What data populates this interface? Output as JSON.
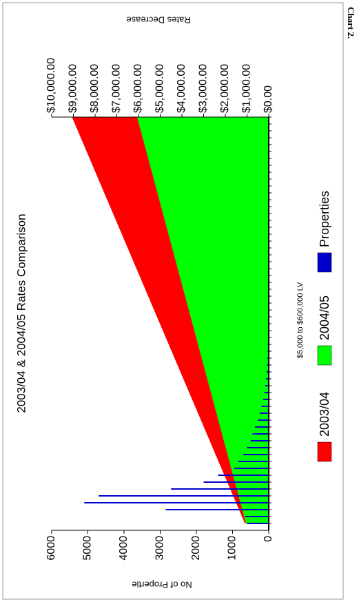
{
  "label": "Chart 2.",
  "chart_data": {
    "type": "combo",
    "title": "2003/04 & 2004/05 Rates Comparison",
    "x_label": "$5,000 to $600,000 LV",
    "y_label": "No of Propertie",
    "y2_label": "Rates Decrease",
    "x": [
      10000,
      20000,
      30000,
      40000,
      50000,
      60000,
      70000,
      80000,
      90000,
      100000,
      110000,
      120000,
      130000,
      140000,
      150000,
      160000,
      170000,
      180000,
      190000,
      200000,
      210000,
      220000,
      230000,
      240000,
      250000,
      260000,
      270000,
      280000,
      290000,
      300000,
      310000,
      320000,
      330000,
      340000,
      350000,
      360000,
      370000,
      380000,
      390000,
      400000,
      410000,
      420000,
      430000,
      440000,
      450000,
      460000,
      470000,
      480000,
      490000,
      500000,
      510000,
      520000,
      530000,
      540000,
      550000,
      560000,
      570000,
      580000,
      590000,
      600000
    ],
    "xlim": [
      0,
      600000
    ],
    "ylim": [
      0,
      6000
    ],
    "yticks": [
      0,
      1000,
      2000,
      3000,
      4000,
      5000,
      6000
    ],
    "y2lim": [
      0,
      10000
    ],
    "y2ticks": [
      {
        "value": 0,
        "label": "$0.00"
      },
      {
        "value": 1000,
        "label": "$1,000.00"
      },
      {
        "value": 2000,
        "label": "$2,000.00"
      },
      {
        "value": 3000,
        "label": "$3,000.00"
      },
      {
        "value": 4000,
        "label": "$4,000.00"
      },
      {
        "value": 5000,
        "label": "$5,000.00"
      },
      {
        "value": 6000,
        "label": "$6,000.00"
      },
      {
        "value": 7000,
        "label": "$7,000.00"
      },
      {
        "value": 8000,
        "label": "$8,000.00"
      },
      {
        "value": 9000,
        "label": "$9,000.00"
      },
      {
        "value": 10000,
        "label": "$10,000.00"
      }
    ],
    "legend": "bottom",
    "series": [
      {
        "name": "2003/04",
        "type": "area",
        "axis": "y2",
        "color": "#ff0000",
        "values": [
          1100,
          1235,
          1370,
          1505,
          1640,
          1775,
          1910,
          2045,
          2180,
          2315,
          2450,
          2585,
          2720,
          2855,
          2990,
          3125,
          3260,
          3395,
          3530,
          3665,
          3800,
          3935,
          4070,
          4205,
          4340,
          4475,
          4610,
          4745,
          4880,
          5015,
          5150,
          5285,
          5420,
          5555,
          5690,
          5825,
          5960,
          6095,
          6230,
          6365,
          6500,
          6635,
          6770,
          6905,
          7040,
          7175,
          7310,
          7445,
          7580,
          7715,
          7850,
          7985,
          8120,
          8255,
          8390,
          8525,
          8660,
          8795,
          8930,
          9065
        ]
      },
      {
        "name": "2004/05",
        "type": "area",
        "axis": "y2",
        "color": "#00ff00",
        "values": [
          1050,
          1135,
          1220,
          1305,
          1390,
          1475,
          1560,
          1645,
          1730,
          1815,
          1900,
          1985,
          2070,
          2155,
          2240,
          2325,
          2410,
          2495,
          2580,
          2665,
          2750,
          2835,
          2920,
          3005,
          3090,
          3175,
          3260,
          3345,
          3430,
          3515,
          3600,
          3685,
          3770,
          3855,
          3940,
          4025,
          4110,
          4195,
          4280,
          4365,
          4450,
          4535,
          4620,
          4705,
          4790,
          4875,
          4960,
          5045,
          5130,
          5215,
          5300,
          5385,
          5470,
          5555,
          5640,
          5725,
          5810,
          5895,
          5980,
          6065
        ]
      },
      {
        "name": "Properties",
        "type": "bar",
        "color": "#0000cc",
        "values": [
          600,
          650,
          2850,
          5100,
          4700,
          2700,
          1800,
          1400,
          950,
          850,
          700,
          600,
          500,
          450,
          380,
          300,
          250,
          200,
          150,
          120,
          100,
          80,
          60,
          50,
          40,
          30,
          25,
          20,
          15,
          10,
          10,
          8,
          8,
          6,
          5,
          5,
          4,
          4,
          3,
          3,
          3,
          2,
          2,
          2,
          2,
          1,
          1,
          1,
          1,
          1,
          1,
          1,
          1,
          1,
          1,
          1,
          1,
          1,
          1,
          1
        ]
      }
    ]
  }
}
